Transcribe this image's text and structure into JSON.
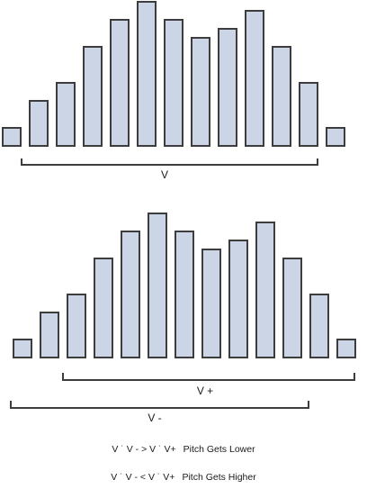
{
  "top_histogram": {
    "values": [
      2,
      5,
      7,
      11,
      14,
      16,
      14,
      12,
      13,
      15,
      11,
      7,
      2
    ],
    "bracket_label": "V"
  },
  "bottom_histogram": {
    "values": [
      2,
      5,
      7,
      11,
      14,
      16,
      14,
      12,
      13,
      15,
      11,
      7,
      2
    ],
    "bracket_upper_label": "V +",
    "bracket_lower_label": "V -"
  },
  "equations": [
    {
      "lhs": "V ˙ V - > V ˙ V+",
      "result": "Pitch Gets Lower"
    },
    {
      "lhs": "V ˙ V - < V ˙ V+",
      "result": "Pitch Gets Higher"
    }
  ],
  "colors": {
    "bar_fill": "#ccd5e6",
    "stroke": "#3d3d3d"
  }
}
